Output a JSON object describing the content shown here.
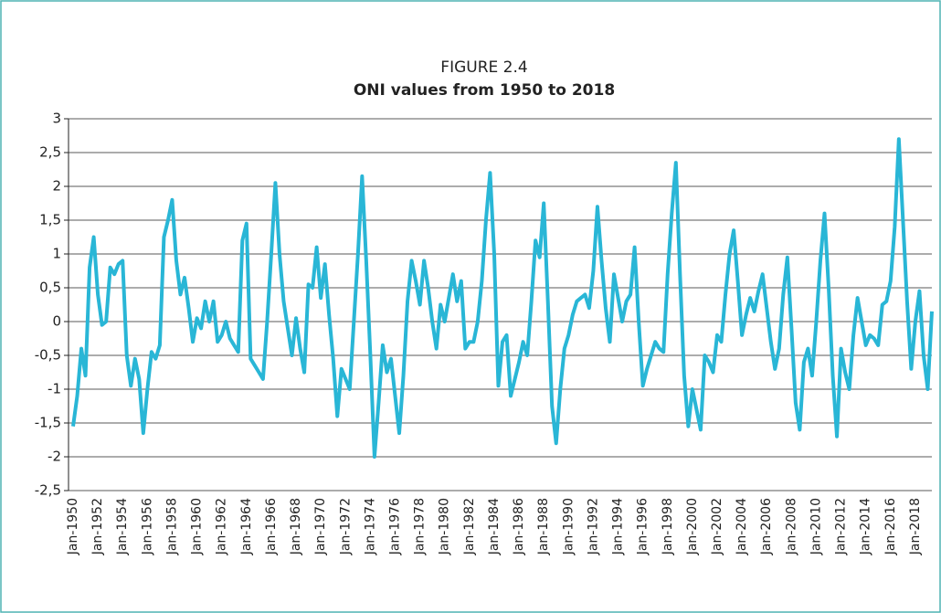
{
  "chart_data": {
    "type": "line",
    "title": "FIGURE 2.4",
    "subtitle": "ONI values from 1950 to 2018",
    "categories": [
      "Jan-1950",
      null,
      null,
      null,
      null,
      null,
      "Jan-1952",
      null,
      null,
      null,
      null,
      null,
      "Jan-1954",
      null,
      null,
      null,
      null,
      null,
      "Jan-1956",
      null,
      null,
      null,
      null,
      null,
      "Jan-1958",
      null,
      null,
      null,
      null,
      null,
      "Jan-1960",
      null,
      null,
      null,
      null,
      null,
      "Jan-1962",
      null,
      null,
      null,
      null,
      null,
      "Jan-1964",
      null,
      null,
      null,
      null,
      null,
      "Jan-1966",
      null,
      null,
      null,
      null,
      null,
      "Jan-1968",
      null,
      null,
      null,
      null,
      null,
      "Jan-1970",
      null,
      null,
      null,
      null,
      null,
      "Jan-1972",
      null,
      null,
      null,
      null,
      null,
      "Jan-1974",
      null,
      null,
      null,
      null,
      null,
      "Jan-1976",
      null,
      null,
      null,
      null,
      null,
      "Jan-1978",
      null,
      null,
      null,
      null,
      null,
      "Jan-1980",
      null,
      null,
      null,
      null,
      null,
      "Jan-1982",
      null,
      null,
      null,
      null,
      null,
      "Jan-1984",
      null,
      null,
      null,
      null,
      null,
      "Jan-1986",
      null,
      null,
      null,
      null,
      null,
      "Jan-1988",
      null,
      null,
      null,
      null,
      null,
      "Jan-1990",
      null,
      null,
      null,
      null,
      null,
      "Jan-1992",
      null,
      null,
      null,
      null,
      null,
      "Jan-1994",
      null,
      null,
      null,
      null,
      null,
      "Jan-1996",
      null,
      null,
      null,
      null,
      null,
      "Jan-1998",
      null,
      null,
      null,
      null,
      null,
      "Jan-2000",
      null,
      null,
      null,
      null,
      null,
      "Jan-2002",
      null,
      null,
      null,
      null,
      null,
      "Jan-2004",
      null,
      null,
      null,
      null,
      null,
      "Jan-2006",
      null,
      null,
      null,
      null,
      null,
      "Jan-2008",
      null,
      null,
      null,
      null,
      null,
      "Jan-2010",
      null,
      null,
      null,
      null,
      null,
      "Jan-2012",
      null,
      null,
      null,
      null,
      null,
      "Jan-2014",
      null,
      null,
      null,
      null,
      null,
      "Jan-2016",
      null,
      null,
      null,
      null,
      null,
      "Jan-2018",
      null,
      null,
      null,
      null
    ],
    "series": [
      {
        "name": "ONI",
        "color": "#29b6d6",
        "values": [
          -1.55,
          -1.1,
          -0.4,
          -0.8,
          0.8,
          1.25,
          0.4,
          -0.05,
          0.0,
          0.8,
          0.7,
          0.85,
          0.9,
          -0.5,
          -0.95,
          -0.55,
          -0.85,
          -1.65,
          -1.0,
          -0.45,
          -0.55,
          -0.35,
          1.25,
          1.5,
          1.8,
          0.9,
          0.4,
          0.65,
          0.2,
          -0.3,
          0.05,
          -0.1,
          0.3,
          0.0,
          0.3,
          -0.3,
          -0.2,
          0.0,
          -0.25,
          -0.35,
          -0.45,
          1.2,
          1.45,
          -0.55,
          -0.65,
          -0.75,
          -0.85,
          0.0,
          1.0,
          2.05,
          1.0,
          0.3,
          -0.1,
          -0.5,
          0.05,
          -0.4,
          -0.75,
          0.55,
          0.5,
          1.1,
          0.35,
          0.85,
          0.1,
          -0.55,
          -1.4,
          -0.7,
          -0.85,
          -1.0,
          0.0,
          1.0,
          2.15,
          0.9,
          -0.5,
          -2.0,
          -1.2,
          -0.35,
          -0.75,
          -0.55,
          -1.1,
          -1.65,
          -0.8,
          0.3,
          0.9,
          0.6,
          0.25,
          0.9,
          0.5,
          0.0,
          -0.4,
          0.25,
          0.0,
          0.35,
          0.7,
          0.3,
          0.6,
          -0.4,
          -0.3,
          -0.3,
          0.0,
          0.6,
          1.5,
          2.2,
          1.0,
          -0.95,
          -0.3,
          -0.2,
          -1.1,
          -0.85,
          -0.6,
          -0.3,
          -0.5,
          0.3,
          1.2,
          0.95,
          1.75,
          0.3,
          -1.25,
          -1.8,
          -1.0,
          -0.4,
          -0.2,
          0.1,
          0.3,
          0.35,
          0.4,
          0.2,
          0.75,
          1.7,
          0.9,
          0.2,
          -0.3,
          0.7,
          0.35,
          0.0,
          0.3,
          0.4,
          1.1,
          0.0,
          -0.95,
          -0.7,
          -0.5,
          -0.3,
          -0.4,
          -0.45,
          0.7,
          1.6,
          2.35,
          0.7,
          -0.8,
          -1.55,
          -1.0,
          -1.3,
          -1.6,
          -0.5,
          -0.6,
          -0.75,
          -0.2,
          -0.3,
          0.4,
          1.0,
          1.35,
          0.6,
          -0.2,
          0.1,
          0.35,
          0.15,
          0.45,
          0.7,
          0.2,
          -0.3,
          -0.7,
          -0.4,
          0.4,
          0.95,
          -0.1,
          -1.2,
          -1.6,
          -0.6,
          -0.4,
          -0.8,
          0.0,
          0.9,
          1.6,
          0.5,
          -0.8,
          -1.7,
          -0.4,
          -0.75,
          -1.0,
          -0.2,
          0.35,
          0.0,
          -0.35,
          -0.2,
          -0.25,
          -0.35,
          0.25,
          0.3,
          0.6,
          1.4,
          2.7,
          1.5,
          0.3,
          -0.7,
          0.0,
          0.45,
          -0.5,
          -1.0,
          0.15
        ]
      }
    ],
    "ylim": [
      -2.5,
      3
    ],
    "yticks": [
      {
        "value": 3,
        "label": "3"
      },
      {
        "value": 2.5,
        "label": "2,5"
      },
      {
        "value": 2,
        "label": "2"
      },
      {
        "value": 1.5,
        "label": "1,5"
      },
      {
        "value": 1,
        "label": "1"
      },
      {
        "value": 0.5,
        "label": "0,5"
      },
      {
        "value": 0,
        "label": "0"
      },
      {
        "value": -0.5,
        "label": "-0,5"
      },
      {
        "value": -1,
        "label": "-1"
      },
      {
        "value": -1.5,
        "label": "-1,5"
      },
      {
        "value": -2,
        "label": "-2"
      },
      {
        "value": -2.5,
        "label": "-2,5"
      }
    ],
    "grid": true
  }
}
